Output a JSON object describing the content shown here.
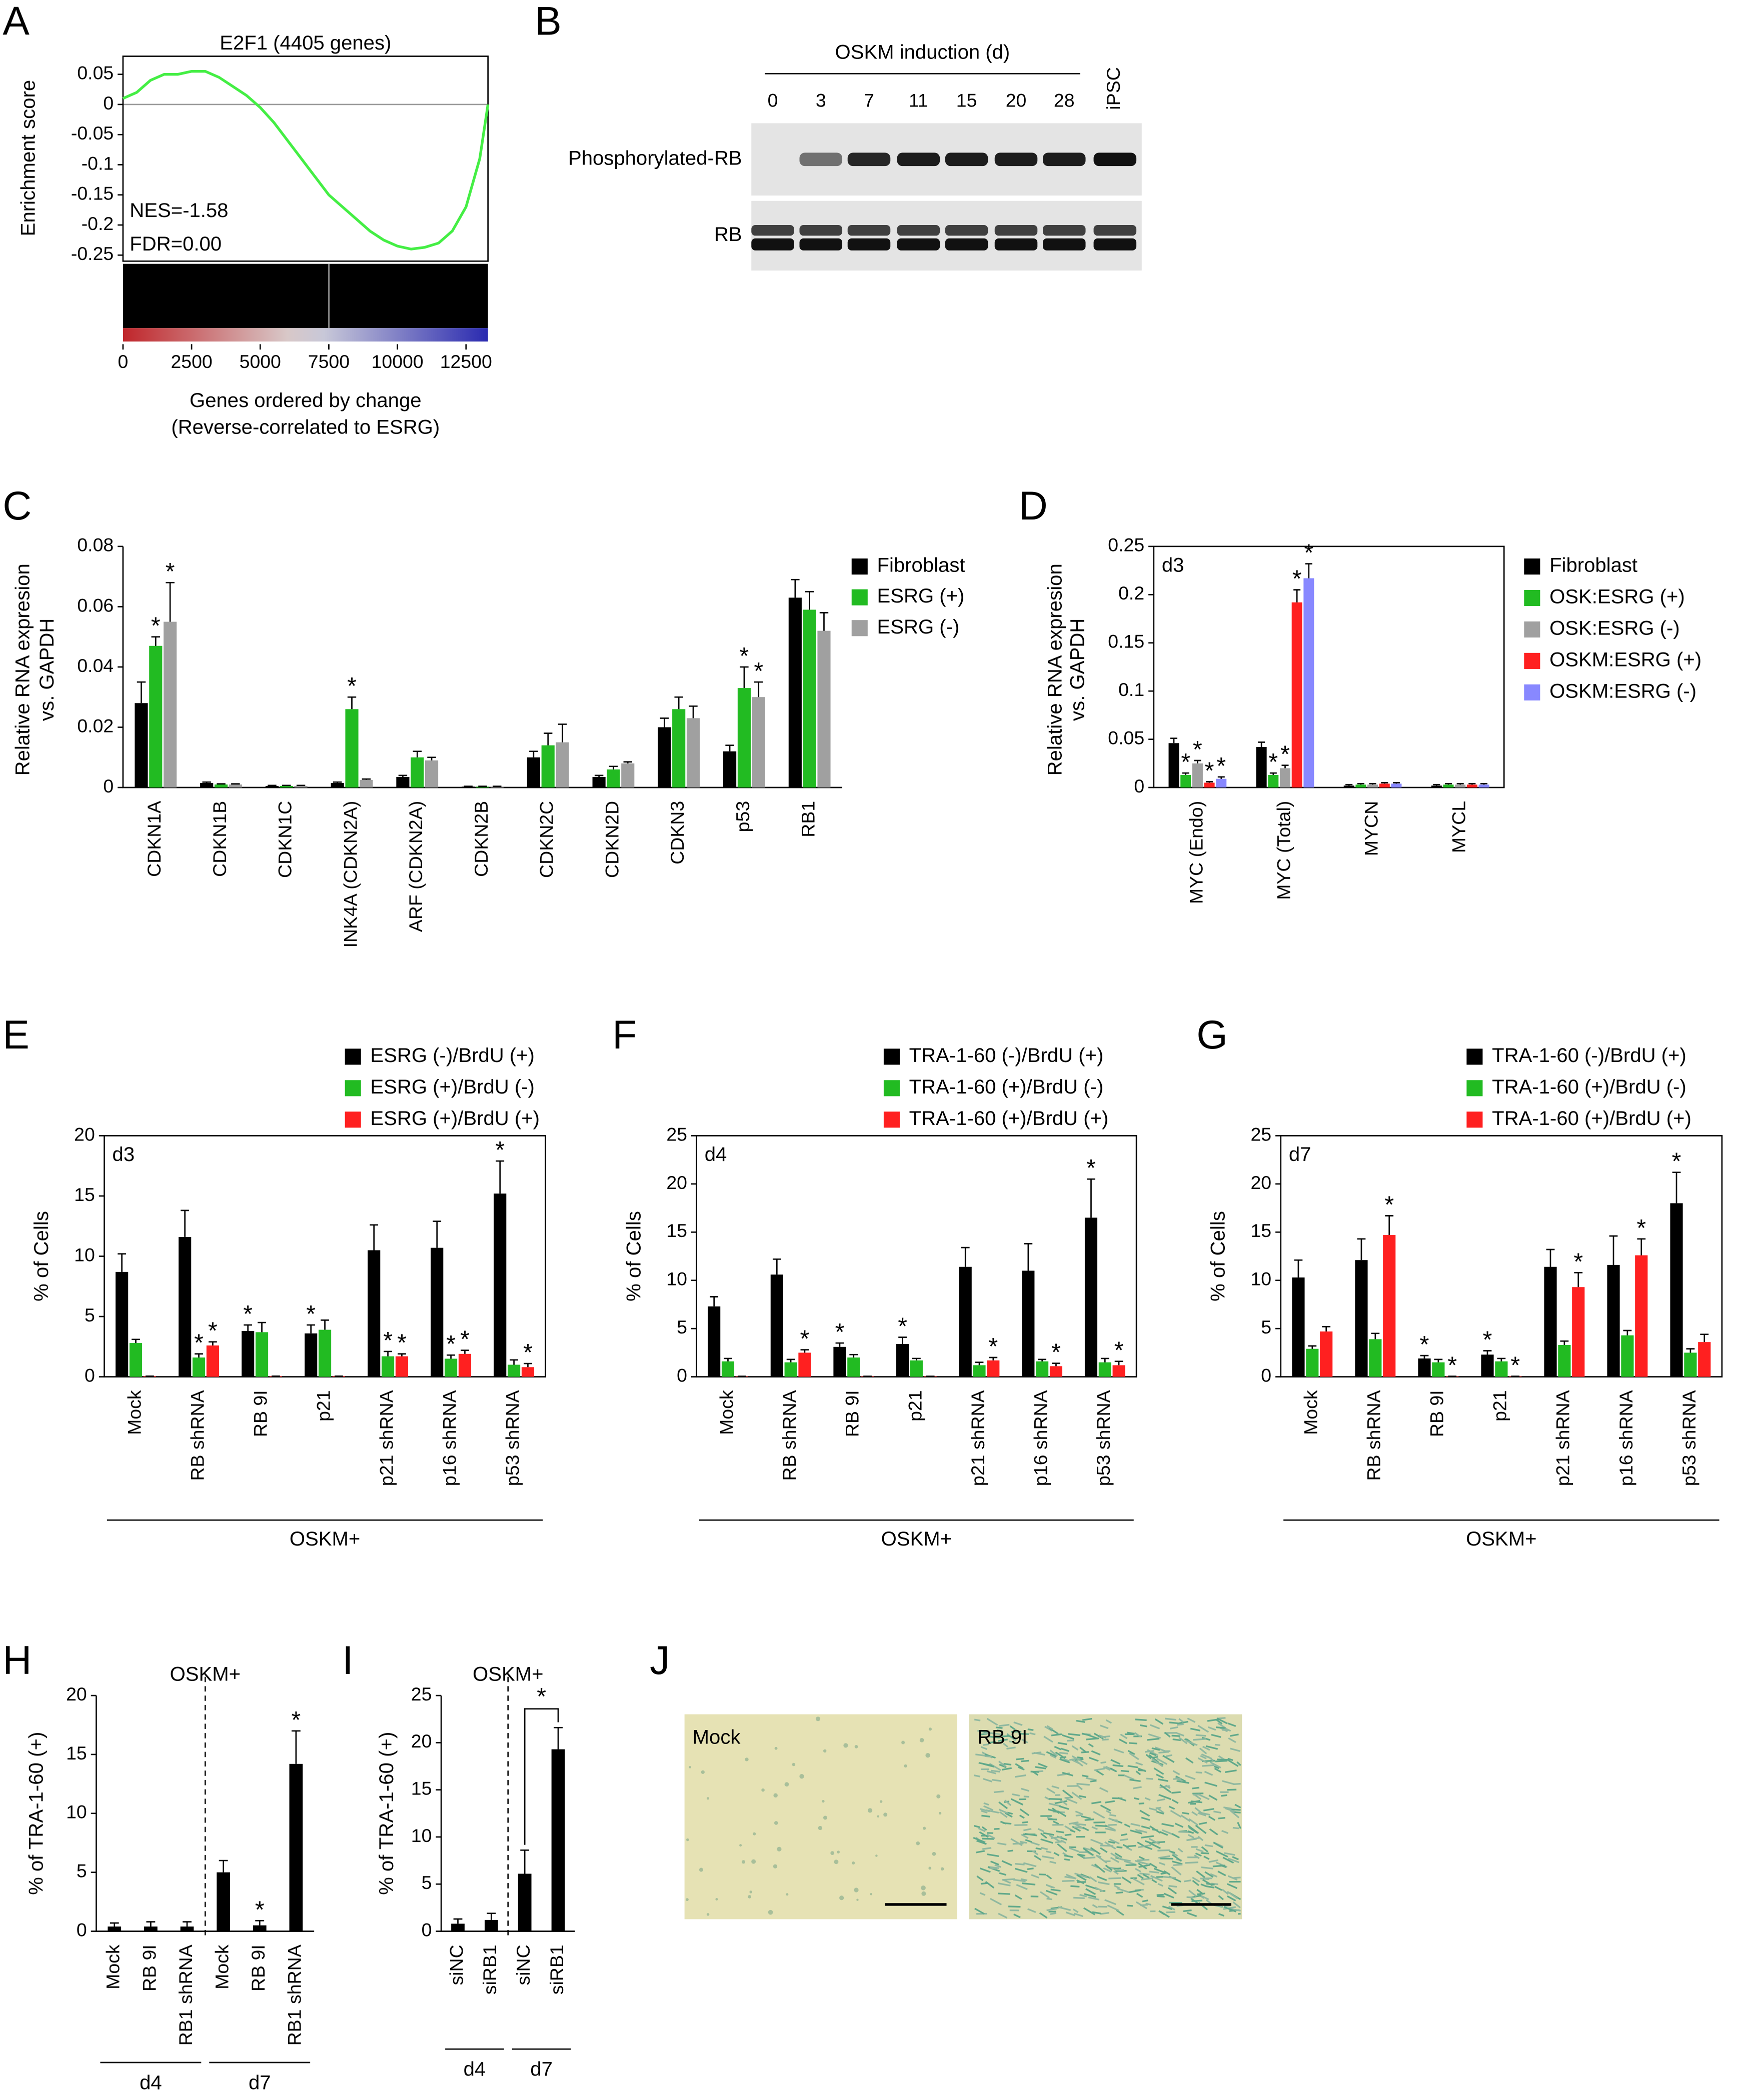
{
  "chart_data": [
    {
      "panel": "A",
      "type": "line",
      "title": "E2F1 (4405 genes)",
      "y_label": "Enrichment score",
      "x_label": [
        "Genes ordered by change",
        "(Reverse-correlated to ESRG)"
      ],
      "annotations": [
        "NES=-1.58",
        "FDR=0.00"
      ],
      "x": [
        0,
        500,
        1000,
        1500,
        2000,
        2500,
        3000,
        3500,
        4000,
        4500,
        5000,
        5500,
        6000,
        6500,
        7000,
        7500,
        8000,
        8500,
        9000,
        9500,
        10000,
        10500,
        11000,
        11500,
        12000,
        12500,
        13000,
        13300
      ],
      "series": [
        {
          "color": "#44ee44",
          "values": [
            0.01,
            0.02,
            0.04,
            0.05,
            0.05,
            0.055,
            0.055,
            0.045,
            0.03,
            0.015,
            -0.005,
            -0.03,
            -0.06,
            -0.09,
            -0.12,
            -0.15,
            -0.17,
            -0.19,
            -0.21,
            -0.225,
            -0.235,
            -0.24,
            -0.237,
            -0.23,
            -0.21,
            -0.17,
            -0.09,
            0.0
          ]
        }
      ],
      "xlim": [
        0,
        13300
      ],
      "ylim": [
        -0.26,
        0.08
      ],
      "xticks": [
        0,
        2500,
        5000,
        7500,
        10000,
        12500
      ],
      "yticks": [
        0.05,
        0,
        -0.05,
        -0.1,
        -0.15,
        -0.2,
        -0.25
      ],
      "zero_line": true
    },
    {
      "panel": "C",
      "type": "bar",
      "y_label": [
        "Relative RNA expresion",
        "vs. GAPDH"
      ],
      "categories": [
        "CDKN1A",
        "CDKN1B",
        "CDKN1C",
        "INK4A (CDKN2A)",
        "ARF (CDKN2A)",
        "CDKN2B",
        "CDKN2C",
        "CDKN2D",
        "CDKN3",
        "p53",
        "RB1"
      ],
      "series": [
        {
          "name": "Fibroblast",
          "color": "#000000",
          "values": [
            0.028,
            0.0015,
            0.0005,
            0.0015,
            0.0035,
            0.0003,
            0.01,
            0.0035,
            0.02,
            0.012,
            0.063
          ],
          "errors": [
            0.007,
            0.0003,
            0.0002,
            0.0003,
            0.0005,
            0.0001,
            0.002,
            0.0005,
            0.003,
            0.002,
            0.006
          ],
          "significant": [
            false,
            false,
            false,
            false,
            false,
            false,
            false,
            false,
            false,
            false,
            false
          ]
        },
        {
          "name": "ESRG (+)",
          "color": "#22bb22",
          "values": [
            0.047,
            0.001,
            0.0005,
            0.026,
            0.01,
            0.0003,
            0.014,
            0.006,
            0.026,
            0.033,
            0.059
          ],
          "errors": [
            0.003,
            0.0002,
            0.0002,
            0.004,
            0.002,
            0.0001,
            0.004,
            0.001,
            0.004,
            0.007,
            0.006
          ],
          "significant": [
            true,
            false,
            false,
            true,
            false,
            false,
            false,
            false,
            false,
            true,
            false
          ]
        },
        {
          "name": "ESRG (-)",
          "color": "#a0a0a0",
          "values": [
            0.055,
            0.001,
            0.0005,
            0.0025,
            0.009,
            0.0003,
            0.015,
            0.008,
            0.023,
            0.03,
            0.052
          ],
          "errors": [
            0.013,
            0.0002,
            0.0002,
            0.0003,
            0.001,
            0.0001,
            0.006,
            0.0005,
            0.004,
            0.005,
            0.006
          ],
          "significant": [
            true,
            false,
            false,
            false,
            false,
            false,
            false,
            false,
            false,
            true,
            false
          ]
        }
      ],
      "ylim": [
        0,
        0.08
      ],
      "yticks": [
        0,
        0.02,
        0.04,
        0.06,
        0.08
      ],
      "significance_label": "*"
    },
    {
      "panel": "D",
      "type": "bar",
      "y_label": [
        "Relative RNA expresion",
        "vs. GAPDH"
      ],
      "annotation": "d3",
      "categories": [
        "MYC (Endo)",
        "MYC (Total)",
        "MYCN",
        "MYCL"
      ],
      "series": [
        {
          "name": "Fibroblast",
          "color": "#000000",
          "values": [
            0.046,
            0.042,
            0.002,
            0.002
          ],
          "errors": [
            0.005,
            0.005,
            0.001,
            0.001
          ],
          "significant": [
            false,
            false,
            false,
            false
          ]
        },
        {
          "name": "OSK:ESRG (+)",
          "color": "#22bb22",
          "values": [
            0.013,
            0.013,
            0.003,
            0.003
          ],
          "errors": [
            0.002,
            0.002,
            0.001,
            0.001
          ],
          "significant": [
            true,
            true,
            false,
            false
          ]
        },
        {
          "name": "OSK:ESRG (-)",
          "color": "#a0a0a0",
          "values": [
            0.025,
            0.02,
            0.003,
            0.003
          ],
          "errors": [
            0.003,
            0.003,
            0.001,
            0.001
          ],
          "significant": [
            true,
            true,
            false,
            false
          ]
        },
        {
          "name": "OSKM:ESRG (+)",
          "color": "#ff2020",
          "values": [
            0.005,
            0.192,
            0.004,
            0.003
          ],
          "errors": [
            0.001,
            0.013,
            0.001,
            0.001
          ],
          "significant": [
            true,
            true,
            false,
            false
          ]
        },
        {
          "name": "OSKM:ESRG (-)",
          "color": "#8888ff",
          "values": [
            0.009,
            0.217,
            0.004,
            0.003
          ],
          "errors": [
            0.002,
            0.015,
            0.001,
            0.001
          ],
          "significant": [
            true,
            true,
            false,
            false
          ]
        }
      ],
      "ylim": [
        0,
        0.25
      ],
      "yticks": [
        0,
        0.05,
        0.1,
        0.15,
        0.2,
        0.25
      ],
      "significance_label": "*"
    },
    {
      "panel": "E",
      "type": "bar",
      "y_label": "% of Cells",
      "annotation": "d3",
      "x_group_label": "OSKM+",
      "categories": [
        "Mock",
        "RB shRNA",
        "RB 9I",
        "p21",
        "p21 shRNA",
        "p16 shRNA",
        "p53 shRNA"
      ],
      "series": [
        {
          "name": "ESRG (-)/BrdU (+)",
          "color": "#000000",
          "values": [
            8.7,
            11.6,
            3.8,
            3.6,
            10.5,
            10.7,
            15.2
          ],
          "errors": [
            1.5,
            2.2,
            0.5,
            0.7,
            2.1,
            2.2,
            2.7
          ],
          "significant": [
            false,
            false,
            true,
            true,
            false,
            false,
            true
          ]
        },
        {
          "name": "ESRG (+)/BrdU (-)",
          "color": "#22bb22",
          "values": [
            2.8,
            1.6,
            3.7,
            3.9,
            1.7,
            1.5,
            1.0
          ],
          "errors": [
            0.3,
            0.3,
            0.8,
            0.8,
            0.4,
            0.3,
            0.4
          ],
          "significant": [
            false,
            true,
            false,
            false,
            true,
            true,
            false
          ]
        },
        {
          "name": "ESRG (+)/BrdU (+)",
          "color": "#ff2020",
          "values": [
            0.05,
            2.6,
            0.05,
            0.05,
            1.7,
            1.9,
            0.8
          ],
          "errors": [
            0,
            0.3,
            0,
            0,
            0.2,
            0.3,
            0.3
          ],
          "significant": [
            false,
            true,
            false,
            false,
            true,
            true,
            true
          ]
        }
      ],
      "ylim": [
        0,
        20
      ],
      "yticks": [
        0,
        5,
        10,
        15,
        20
      ],
      "significance_label": "*"
    },
    {
      "panel": "F",
      "type": "bar",
      "y_label": "% of Cells",
      "annotation": "d4",
      "x_group_label": "OSKM+",
      "categories": [
        "Mock",
        "RB shRNA",
        "RB 9I",
        "p21",
        "p21 shRNA",
        "p16 shRNA",
        "p53 shRNA"
      ],
      "series": [
        {
          "name": "TRA-1-60 (-)/BrdU (+)",
          "color": "#000000",
          "values": [
            7.3,
            10.6,
            3.1,
            3.4,
            11.4,
            11.0,
            16.5
          ],
          "errors": [
            1.0,
            1.6,
            0.4,
            0.7,
            2.0,
            2.8,
            4.0
          ],
          "significant": [
            false,
            false,
            true,
            true,
            false,
            false,
            true
          ]
        },
        {
          "name": "TRA-1-60 (+)/BrdU (-)",
          "color": "#22bb22",
          "values": [
            1.6,
            1.5,
            2.0,
            1.7,
            1.2,
            1.6,
            1.5
          ],
          "errors": [
            0.3,
            0.3,
            0.3,
            0.2,
            0.3,
            0.2,
            0.4
          ],
          "significant": [
            false,
            false,
            false,
            false,
            false,
            false,
            false
          ]
        },
        {
          "name": "TRA-1-60 (+)/BrdU (+)",
          "color": "#ff2020",
          "values": [
            0.05,
            2.5,
            0.05,
            0.05,
            1.7,
            1.1,
            1.2
          ],
          "errors": [
            0,
            0.3,
            0,
            0,
            0.3,
            0.3,
            0.4
          ],
          "significant": [
            false,
            true,
            false,
            false,
            true,
            true,
            true
          ]
        }
      ],
      "ylim": [
        0,
        25
      ],
      "yticks": [
        0,
        5,
        10,
        15,
        20,
        25
      ],
      "significance_label": "*"
    },
    {
      "panel": "G",
      "type": "bar",
      "y_label": "% of Cells",
      "annotation": "d7",
      "x_group_label": "OSKM+",
      "categories": [
        "Mock",
        "RB shRNA",
        "RB 9I",
        "p21",
        "p21 shRNA",
        "p16 shRNA",
        "p53 shRNA"
      ],
      "series": [
        {
          "name": "TRA-1-60 (-)/BrdU (+)",
          "color": "#000000",
          "values": [
            10.3,
            12.1,
            1.9,
            2.3,
            11.4,
            11.6,
            18.0
          ],
          "errors": [
            1.8,
            2.2,
            0.3,
            0.4,
            1.8,
            3.0,
            3.2
          ],
          "significant": [
            false,
            false,
            true,
            true,
            false,
            false,
            true
          ]
        },
        {
          "name": "TRA-1-60 (+)/BrdU (-)",
          "color": "#22bb22",
          "values": [
            2.9,
            3.9,
            1.5,
            1.6,
            3.3,
            4.3,
            2.5
          ],
          "errors": [
            0.3,
            0.6,
            0.3,
            0.3,
            0.4,
            0.5,
            0.4
          ],
          "significant": [
            false,
            false,
            false,
            false,
            false,
            false,
            false
          ]
        },
        {
          "name": "TRA-1-60 (+)/BrdU (+)",
          "color": "#ff2020",
          "values": [
            4.7,
            14.7,
            0.05,
            0.05,
            9.3,
            12.6,
            3.6
          ],
          "errors": [
            0.5,
            2.0,
            0,
            0,
            1.5,
            1.7,
            0.8
          ],
          "significant": [
            false,
            true,
            true,
            true,
            true,
            true,
            false
          ]
        }
      ],
      "ylim": [
        0,
        25
      ],
      "yticks": [
        0,
        5,
        10,
        15,
        20,
        25
      ],
      "significance_label": "*"
    },
    {
      "panel": "H",
      "type": "bar",
      "y_label": "% of TRA-1-60 (+)",
      "header": "OSKM+",
      "groups": [
        {
          "name": "d4",
          "categories": [
            "Mock",
            "RB 9I",
            "RB1 shRNA"
          ]
        },
        {
          "name": "d7",
          "categories": [
            "Mock",
            "RB 9I",
            "RB1 shRNA"
          ]
        }
      ],
      "series": [
        {
          "color": "#000000",
          "values": [
            0.4,
            0.4,
            0.4,
            5.0,
            0.5,
            14.2
          ],
          "errors": [
            0.3,
            0.4,
            0.4,
            1.0,
            0.4,
            2.8
          ],
          "significant": [
            false,
            false,
            false,
            false,
            true,
            true
          ]
        }
      ],
      "ylim": [
        0,
        20
      ],
      "yticks": [
        0,
        5,
        10,
        15,
        20
      ],
      "significance_label": "*"
    },
    {
      "panel": "I",
      "type": "bar",
      "y_label": "% of TRA-1-60 (+)",
      "header": "OSKM+",
      "groups": [
        {
          "name": "d4",
          "categories": [
            "siNC",
            "siRB1"
          ]
        },
        {
          "name": "d7",
          "categories": [
            "siNC",
            "siRB1"
          ]
        }
      ],
      "series": [
        {
          "color": "#000000",
          "values": [
            0.8,
            1.2,
            6.1,
            19.3
          ],
          "errors": [
            0.5,
            0.7,
            2.5,
            2.3
          ],
          "significant": [
            false,
            false,
            false,
            false
          ]
        }
      ],
      "ylim": [
        0,
        25
      ],
      "yticks": [
        0,
        5,
        10,
        15,
        20,
        25
      ],
      "significance_label": "*",
      "bracket": true
    }
  ],
  "blot": {
    "panel": "B",
    "header": "OSKM induction (d)",
    "lanes": [
      "0",
      "3",
      "7",
      "11",
      "15",
      "20",
      "28",
      "iPSC"
    ],
    "rows": [
      "Phosphorylated-RB",
      "RB"
    ]
  },
  "micrographs": {
    "panel": "J",
    "images": [
      "Mock",
      "RB 9I"
    ]
  }
}
